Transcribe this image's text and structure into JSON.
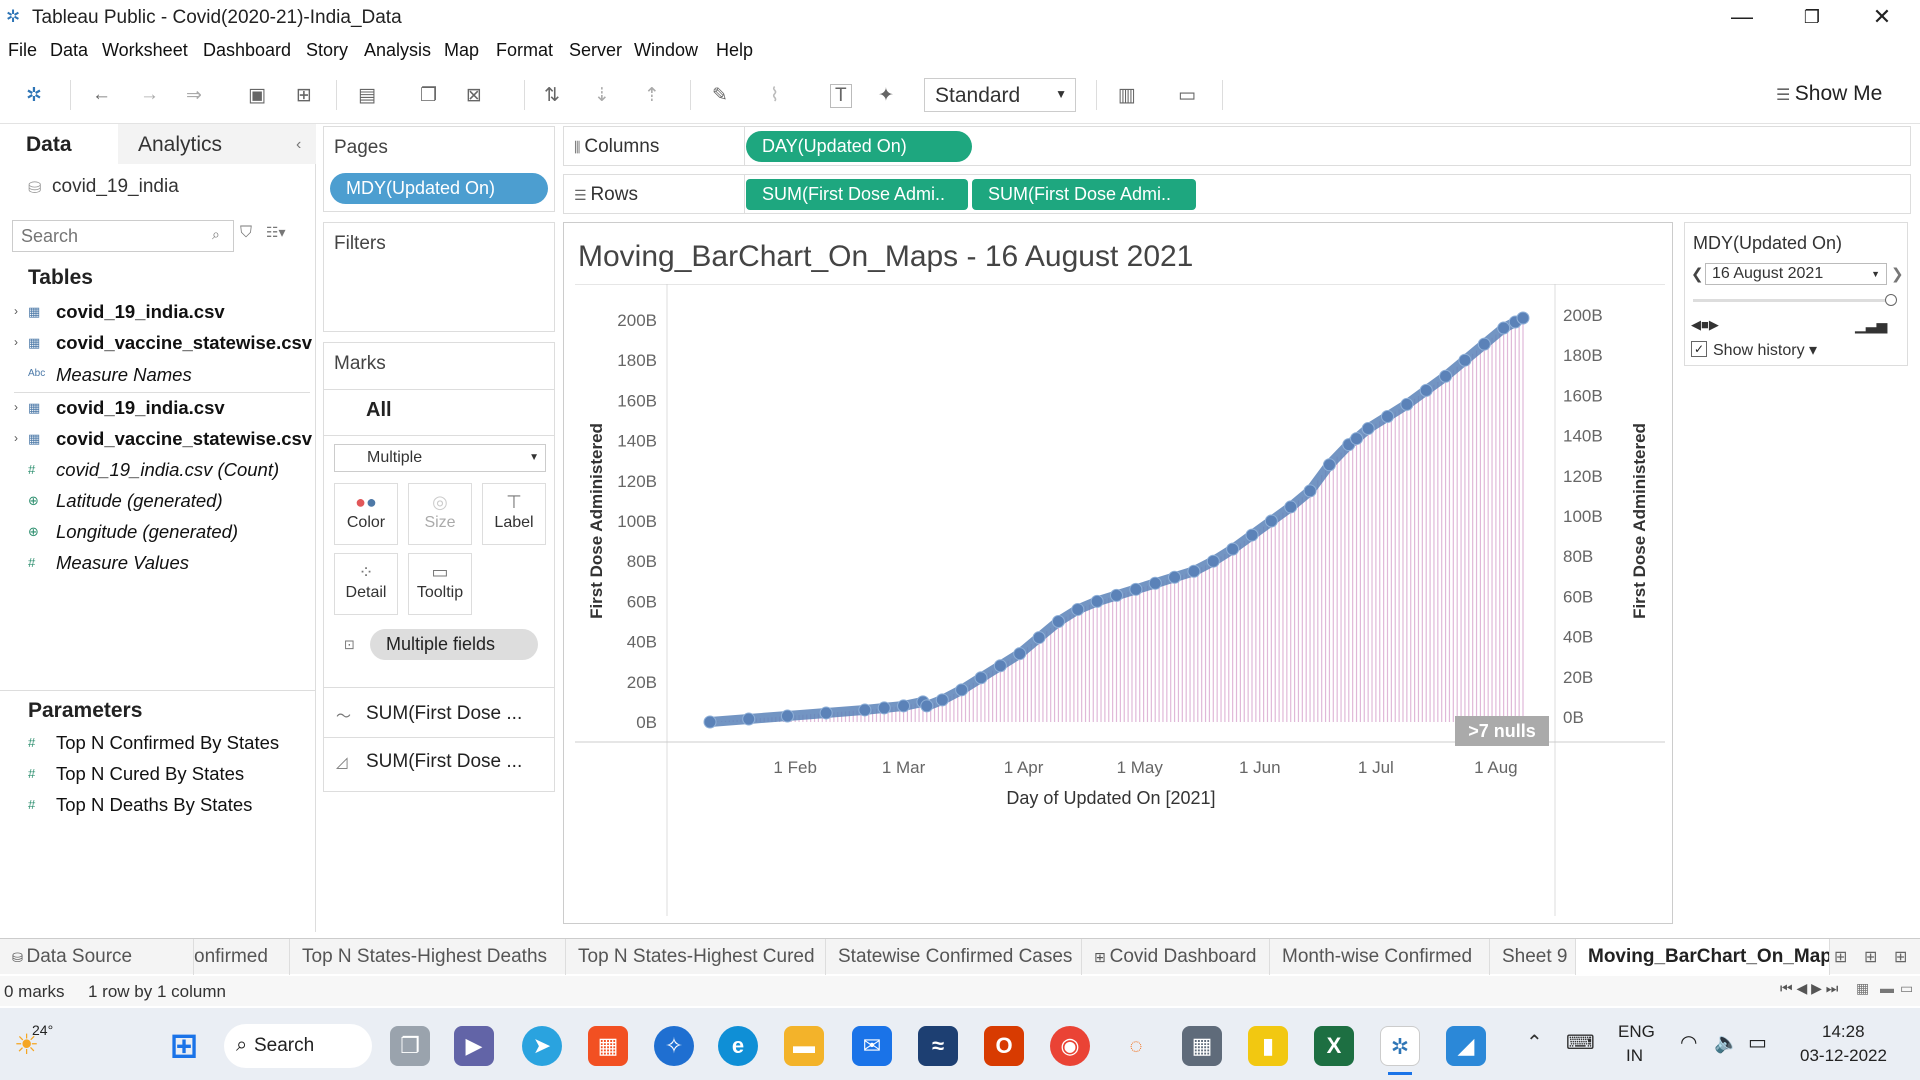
{
  "window": {
    "title": "Tableau Public - Covid(2020-21)-India_Data",
    "minimize": "—",
    "restore": "❐",
    "close": "✕"
  },
  "menu": [
    "File",
    "Data",
    "Worksheet",
    "Dashboard",
    "Story",
    "Analysis",
    "Map",
    "Format",
    "Server",
    "Window",
    "Help"
  ],
  "toolbar": {
    "fit_value": "Standard",
    "show_me": "Show Me"
  },
  "data_pane": {
    "tab_data": "Data",
    "tab_analytics": "Analytics",
    "datasource": "covid_19_india",
    "search_placeholder": "Search",
    "tables_header": "Tables",
    "fields": [
      {
        "name": "covid_19_india.csv",
        "style": "table"
      },
      {
        "name": "covid_vaccine_statewise.csv",
        "style": "table"
      },
      {
        "name": "Measure Names",
        "style": "italic-abc"
      },
      {
        "name": "covid_19_india.csv",
        "style": "table"
      },
      {
        "name": "covid_vaccine_statewise.csv",
        "style": "table"
      },
      {
        "name": "covid_19_india.csv (Count)",
        "style": "italic-measure"
      },
      {
        "name": "Latitude (generated)",
        "style": "italic-geo"
      },
      {
        "name": "Longitude (generated)",
        "style": "italic-geo"
      },
      {
        "name": "Measure Values",
        "style": "italic-measure"
      }
    ],
    "parameters_header": "Parameters",
    "parameters": [
      "Top N Confirmed By States",
      "Top N Cured By States",
      "Top N Deaths By States"
    ]
  },
  "pages": {
    "title": "Pages",
    "pill": "MDY(Updated On)"
  },
  "filters": {
    "title": "Filters"
  },
  "marks": {
    "title": "Marks",
    "all_label": "All",
    "type": "Multiple",
    "buttons": [
      "Color",
      "Size",
      "Label",
      "Detail",
      "Tooltip"
    ],
    "multiple_fields_pill": "Multiple fields",
    "layers": [
      "SUM(First Dose ...",
      "SUM(First Dose ..."
    ]
  },
  "shelves": {
    "columns_label": "Columns",
    "columns_pill": "DAY(Updated On)",
    "rows_label": "Rows",
    "rows_pills": [
      "SUM(First Dose Admi..",
      "SUM(First Dose Admi.."
    ]
  },
  "parameter_card": {
    "title": "MDY(Updated On)",
    "value": "16 August 2021",
    "show_history": "Show history"
  },
  "chart_data": {
    "type": "line",
    "title": "Moving_BarChart_On_Maps - 16 August 2021",
    "xlabel": "Day of Updated On [2021]",
    "ylabel": "First Dose Administered",
    "ylabel_right": "First Dose Administered",
    "x_ticks": [
      "1 Feb",
      "1 Mar",
      "1 Apr",
      "1 May",
      "1 Jun",
      "1 Jul",
      "1 Aug"
    ],
    "y_ticks": [
      "0B",
      "20B",
      "40B",
      "60B",
      "80B",
      "100B",
      "120B",
      "140B",
      "160B",
      "180B",
      "200B"
    ],
    "y_ticks_right": [
      "0B",
      "20B",
      "40B",
      "60B",
      "80B",
      "100B",
      "120B",
      "140B",
      "160B",
      "180B",
      "200B"
    ],
    "ylim": [
      0,
      200
    ],
    "x_range_days": [
      0,
      210
    ],
    "nulls_badge": ">7 nulls",
    "series": [
      {
        "values_x_day": [
          0,
          10,
          20,
          30,
          40,
          45,
          50,
          55,
          56,
          60,
          65,
          70,
          75,
          80,
          85,
          90,
          95,
          100,
          105,
          110,
          115,
          120,
          125,
          130,
          135,
          140,
          145,
          150,
          155,
          160,
          165,
          167,
          170,
          175,
          180,
          185,
          190,
          195,
          200,
          205,
          208,
          210
        ],
        "values_y": [
          0,
          1.5,
          3,
          4.5,
          6,
          7,
          8,
          10,
          8,
          11,
          16,
          22,
          28,
          34,
          42,
          50,
          56,
          60,
          63,
          66,
          69,
          72,
          75,
          80,
          86,
          93,
          100,
          107,
          115,
          128,
          138,
          141,
          146,
          152,
          158,
          165,
          172,
          180,
          188,
          196,
          199,
          201
        ]
      }
    ]
  },
  "sheet_tabs": [
    "Data Source",
    "onfirmed",
    "Top N States-Highest Deaths",
    "Top N States-Highest Cured",
    "Statewise Confirmed Cases",
    "Covid Dashboard",
    "Month-wise Confirmed",
    "Sheet 9",
    "Moving_BarChart_On_Maps"
  ],
  "status": {
    "marks": "0 marks",
    "rows": "1 row by 1 column"
  },
  "taskbar": {
    "weather": "24°",
    "search": "Search",
    "lang_top": "ENG",
    "lang_bottom": "IN",
    "time": "14:28",
    "date": "03-12-2022"
  },
  "colors": {
    "green_pill": "#1ea77f",
    "blue_pill": "#4c9ed0",
    "line": "#5b82b8",
    "bars": "#d9a7cf"
  }
}
